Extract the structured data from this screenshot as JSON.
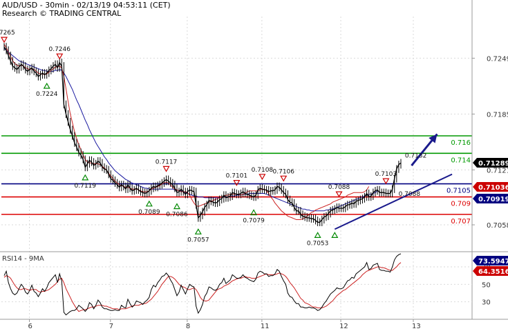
{
  "header": {
    "title": "AUD/USD - 30min - 02/13/19 04:53:11 (CET)",
    "subtitle": "Research © TRADING CENTRAL"
  },
  "chart_data": {
    "type": "line",
    "instrument": "AUD/USD",
    "price_axis": {
      "ylim": [
        0.7028,
        0.7292
      ],
      "ticks": [
        "0.7249",
        "0.7185",
        "0.7121",
        "0.7058"
      ]
    },
    "x_ticks": [
      "6",
      "7",
      "8",
      "11",
      "12",
      "13"
    ],
    "levels": [
      {
        "value": 0.716,
        "label": "0.716",
        "color": "#009900"
      },
      {
        "value": 0.714,
        "label": "0.714",
        "color": "#009900"
      },
      {
        "value": 0.7105,
        "label": "0.7105",
        "color": "#000080"
      },
      {
        "value": 0.709,
        "label": "0.709",
        "color": "#dd0000"
      },
      {
        "value": 0.707,
        "label": "0.707",
        "color": "#dd0000"
      }
    ],
    "price_tags": [
      {
        "value": 0.71289,
        "label": "0.71289",
        "bg": "#000000"
      },
      {
        "value": 0.71036,
        "label": "0.71036",
        "bg": "#cc0000"
      },
      {
        "value": 0.70919,
        "label": "0.70919",
        "bg": "#000080"
      }
    ],
    "annotations": [
      {
        "text": "0.7265",
        "value": 0.7265,
        "bar": 0,
        "marker": "high"
      },
      {
        "text": "0.7246",
        "value": 0.7246,
        "bar": 26,
        "marker": "high"
      },
      {
        "text": "0.7224",
        "value": 0.7224,
        "bar": 20,
        "marker": "low"
      },
      {
        "text": "0.7119",
        "value": 0.7119,
        "bar": 38,
        "marker": "low"
      },
      {
        "text": "0.7117",
        "value": 0.7117,
        "bar": 76,
        "marker": "high"
      },
      {
        "text": "0.7089",
        "value": 0.7089,
        "bar": 68,
        "marker": "low"
      },
      {
        "text": "0.7086",
        "value": 0.7086,
        "bar": 81,
        "marker": "low"
      },
      {
        "text": "0.7057",
        "value": 0.7057,
        "bar": 91,
        "marker": "low"
      },
      {
        "text": "0.7101",
        "value": 0.7101,
        "bar": 109,
        "marker": "high"
      },
      {
        "text": "0.7079",
        "value": 0.7079,
        "bar": 117,
        "marker": "low"
      },
      {
        "text": "0.7108",
        "value": 0.7108,
        "bar": 121,
        "marker": "high"
      },
      {
        "text": "0.7106",
        "value": 0.7106,
        "bar": 131,
        "marker": "high"
      },
      {
        "text": "0.7088",
        "value": 0.7088,
        "bar": 157,
        "marker": "high"
      },
      {
        "text": "0.7053",
        "value": 0.7053,
        "bar": 147,
        "marker": "low"
      },
      {
        "text": "0.7053",
        "value": 0.7053,
        "bar": 155,
        "marker": "low",
        "hide_text": true
      },
      {
        "text": "0.7103",
        "value": 0.7103,
        "bar": 179,
        "marker": "high"
      },
      {
        "text": "0.7088",
        "value": 0.7088,
        "bar": 190,
        "marker": "none"
      },
      {
        "text": "0.7132",
        "value": 0.7132,
        "bar": 193,
        "marker": "none"
      }
    ],
    "price_series": [
      0.7262,
      0.7258,
      0.7252,
      0.7246,
      0.724,
      0.7238,
      0.7236,
      0.7239,
      0.7242,
      0.724,
      0.7236,
      0.7234,
      0.7236,
      0.7238,
      0.7234,
      0.7232,
      0.7228,
      0.723,
      0.7232,
      0.723,
      0.7232,
      0.7235,
      0.7237,
      0.724,
      0.7242,
      0.7238,
      0.7244,
      0.724,
      0.7196,
      0.7185,
      0.7176,
      0.7167,
      0.716,
      0.7152,
      0.7147,
      0.7141,
      0.7138,
      0.7133,
      0.7124,
      0.7128,
      0.7132,
      0.713,
      0.7126,
      0.7128,
      0.7131,
      0.7129,
      0.7124,
      0.7122,
      0.7121,
      0.7116,
      0.7111,
      0.7109,
      0.7106,
      0.7104,
      0.7101,
      0.7104,
      0.7102,
      0.7099,
      0.7104,
      0.71,
      0.7097,
      0.7098,
      0.71,
      0.7098,
      0.7096,
      0.7095,
      0.7094,
      0.7095,
      0.7097,
      0.71,
      0.7102,
      0.7101,
      0.7103,
      0.7104,
      0.7106,
      0.7108,
      0.711,
      0.7108,
      0.7106,
      0.7104,
      0.71,
      0.7095,
      0.7096,
      0.7099,
      0.7096,
      0.7093,
      0.7096,
      0.7098,
      0.7097,
      0.7096,
      0.7081,
      0.7066,
      0.7069,
      0.7073,
      0.7078,
      0.7081,
      0.7086,
      0.7085,
      0.7084,
      0.7083,
      0.7084,
      0.7087,
      0.7088,
      0.7092,
      0.7089,
      0.709,
      0.7091,
      0.7095,
      0.7094,
      0.7093,
      0.7093,
      0.7094,
      0.7096,
      0.7094,
      0.7093,
      0.7092,
      0.7091,
      0.709,
      0.7092,
      0.7098,
      0.71,
      0.7099,
      0.7098,
      0.7098,
      0.7096,
      0.7097,
      0.7097,
      0.7098,
      0.7102,
      0.7101,
      0.7098,
      0.7095,
      0.7093,
      0.7087,
      0.7084,
      0.7083,
      0.7078,
      0.7074,
      0.7074,
      0.707,
      0.7068,
      0.7067,
      0.7066,
      0.7066,
      0.7065,
      0.7065,
      0.7063,
      0.7061,
      0.7061,
      0.7064,
      0.7067,
      0.7068,
      0.7071,
      0.7074,
      0.7075,
      0.7076,
      0.7078,
      0.7077,
      0.7077,
      0.7077,
      0.7079,
      0.7081,
      0.7081,
      0.7083,
      0.7082,
      0.7085,
      0.7086,
      0.7087,
      0.7088,
      0.709,
      0.7094,
      0.709,
      0.7091,
      0.7095,
      0.7097,
      0.7098,
      0.7095,
      0.7095,
      0.7095,
      0.7094,
      0.7094,
      0.7094,
      0.7099,
      0.7111,
      0.7122,
      0.7127,
      0.7129
    ],
    "ma_fast": [
      0.7265,
      0.7261,
      0.7256,
      0.7251,
      0.7246,
      0.7243,
      0.7241,
      0.724,
      0.7241,
      0.724,
      0.7238,
      0.7237,
      0.7236,
      0.7237,
      0.7236,
      0.7234,
      0.7232,
      0.7231,
      0.7231,
      0.723,
      0.7231,
      0.7233,
      0.7235,
      0.7237,
      0.7239,
      0.7239,
      0.724,
      0.7238,
      0.7228,
      0.7214,
      0.7199,
      0.7185,
      0.7175,
      0.7165,
      0.7157,
      0.715,
      0.7144,
      0.7138,
      0.7133,
      0.713,
      0.7129,
      0.7129,
      0.7128,
      0.7128,
      0.7128,
      0.7127,
      0.7125,
      0.7123,
      0.7121,
      0.7117,
      0.7114,
      0.7111,
      0.7108,
      0.7106,
      0.7104,
      0.7103,
      0.7102,
      0.7101,
      0.7101,
      0.71,
      0.7099,
      0.7099,
      0.7099,
      0.7098,
      0.7097,
      0.7096,
      0.7096,
      0.7096,
      0.7097,
      0.7099,
      0.71,
      0.7101,
      0.7102,
      0.7103,
      0.7105,
      0.7106,
      0.7107,
      0.7106,
      0.7104,
      0.7101,
      0.7099,
      0.7098,
      0.7097,
      0.7096,
      0.7096,
      0.7096,
      0.7095,
      0.7092,
      0.7087,
      0.7083,
      0.708,
      0.7079,
      0.708,
      0.7081,
      0.7082,
      0.7083,
      0.7084,
      0.7085,
      0.7086,
      0.7087,
      0.7088,
      0.7089,
      0.709,
      0.7091,
      0.7092,
      0.7092,
      0.7093,
      0.7093,
      0.7093,
      0.7093,
      0.7093,
      0.7092,
      0.7093,
      0.7094,
      0.7096,
      0.7097,
      0.7097,
      0.7097,
      0.7097,
      0.7097,
      0.7098,
      0.7099,
      0.7099,
      0.7097,
      0.7094,
      0.709,
      0.7087,
      0.7083,
      0.708,
      0.7077,
      0.7074,
      0.7072,
      0.707,
      0.7068,
      0.7067,
      0.7066,
      0.7065,
      0.7064,
      0.7064,
      0.7064,
      0.7065,
      0.7066,
      0.7068,
      0.707,
      0.7072,
      0.7073,
      0.7075,
      0.7076,
      0.7077,
      0.7078,
      0.7079,
      0.708,
      0.7081,
      0.7082,
      0.7084,
      0.7085,
      0.7086,
      0.7087,
      0.7088,
      0.7089,
      0.709,
      0.7092,
      0.7093,
      0.7094,
      0.7095,
      0.7095,
      0.7095,
      0.7095,
      0.7095,
      0.7096,
      0.7098,
      0.7102
    ],
    "ma_slow": [
      0.726,
      0.7258,
      0.7256,
      0.7254,
      0.7252,
      0.725,
      0.7248,
      0.7246,
      0.7245,
      0.7244,
      0.7243,
      0.7242,
      0.7241,
      0.724,
      0.7239,
      0.7238,
      0.7237,
      0.7236,
      0.7235,
      0.7235,
      0.7234,
      0.7234,
      0.7234,
      0.7234,
      0.7235,
      0.7235,
      0.7236,
      0.7235,
      0.7232,
      0.7228,
      0.7223,
      0.7218,
      0.7213,
      0.7207,
      0.7201,
      0.7196,
      0.719,
      0.7184,
      0.7178,
      0.7173,
      0.7167,
      0.7162,
      0.7157,
      0.7152,
      0.7148,
      0.7144,
      0.714,
      0.7136,
      0.7133,
      0.7129,
      0.7126,
      0.7123,
      0.712,
      0.7118,
      0.7116,
      0.7114,
      0.7112,
      0.711,
      0.7109,
      0.7107,
      0.7106,
      0.7105,
      0.7104,
      0.7103,
      0.7102,
      0.7101,
      0.71,
      0.71,
      0.7099,
      0.7099,
      0.7099,
      0.7099,
      0.7099,
      0.7099,
      0.7099,
      0.7099,
      0.7099,
      0.7099,
      0.7099,
      0.7099,
      0.7098,
      0.7098,
      0.7097,
      0.7097,
      0.7096,
      0.7095,
      0.7094,
      0.7093,
      0.7092,
      0.7091,
      0.7091,
      0.709,
      0.709,
      0.709,
      0.7089,
      0.7089,
      0.7089,
      0.7089,
      0.7089,
      0.7089,
      0.7089,
      0.7089,
      0.709,
      0.709,
      0.709,
      0.709,
      0.7091,
      0.7091,
      0.7091,
      0.7092,
      0.7092,
      0.7092,
      0.7093,
      0.7093,
      0.7093,
      0.7094,
      0.7094,
      0.7094,
      0.7094,
      0.7094,
      0.7094,
      0.7094,
      0.7094,
      0.7093,
      0.7092,
      0.7091,
      0.709,
      0.7089,
      0.7088,
      0.7087,
      0.7086,
      0.7085,
      0.7084,
      0.7083,
      0.7082,
      0.7081,
      0.708,
      0.7079,
      0.7078,
      0.7077,
      0.7076,
      0.7076,
      0.7075,
      0.7075,
      0.7074,
      0.7074,
      0.7074,
      0.7074,
      0.7074,
      0.7074,
      0.7074,
      0.7075,
      0.7075,
      0.7076,
      0.7076,
      0.7077,
      0.7078,
      0.7079,
      0.708,
      0.7081,
      0.7082,
      0.7083,
      0.7084,
      0.7085,
      0.7086,
      0.7087,
      0.7088,
      0.7089,
      0.709,
      0.7091,
      0.7092,
      0.7093,
      0.7093,
      0.7094,
      0.7095,
      0.7097
    ],
    "trendline": {
      "from": {
        "bar": 155,
        "value": 0.7053
      },
      "to": {
        "bar": 210,
        "value": 0.7116
      }
    },
    "arrow": {
      "from": {
        "bar": 191,
        "value": 0.7126
      },
      "to": {
        "bar": 203,
        "value": 0.7162
      }
    },
    "rsi_panel": {
      "title": "RSI14 - 9MA",
      "ylim": [
        10,
        85
      ],
      "ticks": [
        "70",
        "50",
        "30"
      ],
      "tags": [
        {
          "value": 73.5947,
          "label": "73.5947",
          "bg": "#000080"
        },
        {
          "value": 64.3516,
          "label": "64.3516",
          "bg": "#cc0000"
        }
      ],
      "rsi": [
        60,
        65,
        52,
        45,
        40,
        38,
        40,
        45,
        50,
        47,
        41,
        39,
        43,
        49,
        42,
        40,
        36,
        40,
        45,
        42,
        46,
        52,
        55,
        58,
        61,
        52,
        62,
        54,
        18,
        15,
        17,
        19,
        20,
        20,
        22,
        26,
        24,
        22,
        19,
        22,
        29,
        27,
        22,
        26,
        32,
        29,
        24,
        22,
        22,
        21,
        20,
        20,
        21,
        20,
        20,
        26,
        24,
        23,
        33,
        28,
        24,
        26,
        31,
        30,
        29,
        27,
        30,
        32,
        35,
        44,
        49,
        47,
        52,
        55,
        59,
        60,
        63,
        60,
        55,
        51,
        44,
        37,
        41,
        49,
        44,
        39,
        45,
        50,
        48,
        47,
        25,
        17,
        21,
        27,
        36,
        40,
        47,
        46,
        44,
        43,
        45,
        50,
        52,
        57,
        51,
        53,
        55,
        61,
        59,
        57,
        57,
        58,
        61,
        58,
        57,
        55,
        54,
        53,
        56,
        63,
        65,
        64,
        62,
        62,
        59,
        60,
        60,
        62,
        67,
        65,
        59,
        54,
        50,
        40,
        36,
        35,
        31,
        28,
        28,
        24,
        24,
        23,
        23,
        24,
        23,
        23,
        22,
        20,
        21,
        24,
        28,
        31,
        35,
        39,
        41,
        43,
        46,
        45,
        45,
        46,
        50,
        54,
        55,
        58,
        57,
        62,
        64,
        66,
        68,
        70,
        75,
        67,
        68,
        72,
        73,
        74,
        67,
        66,
        66,
        65,
        65,
        64,
        70,
        78,
        82,
        84,
        85
      ],
      "rsi_ma": [
        58,
        60,
        59,
        57,
        53,
        49,
        46,
        44,
        44,
        45,
        45,
        44,
        43,
        44,
        44,
        44,
        42,
        41,
        42,
        42,
        43,
        44,
        46,
        48,
        50,
        53,
        56,
        57,
        52,
        45,
        40,
        35,
        30,
        26,
        22,
        19,
        20,
        21,
        21,
        22,
        23,
        24,
        24,
        25,
        26,
        26,
        26,
        25,
        25,
        24,
        23,
        22,
        22,
        22,
        21,
        22,
        22,
        22,
        23,
        24,
        25,
        26,
        26,
        26,
        27,
        28,
        28,
        29,
        31,
        33,
        36,
        39,
        42,
        46,
        50,
        53,
        56,
        59,
        59,
        58,
        56,
        53,
        50,
        48,
        47,
        46,
        44,
        44,
        45,
        46,
        44,
        40,
        35,
        32,
        31,
        31,
        32,
        35,
        38,
        41,
        44,
        45,
        46,
        48,
        49,
        50,
        52,
        54,
        55,
        56,
        57,
        57,
        58,
        59,
        58,
        58,
        57,
        57,
        57,
        58,
        59,
        60,
        61,
        62,
        61,
        61,
        61,
        61,
        62,
        63,
        62,
        61,
        59,
        56,
        52,
        49,
        46,
        42,
        38,
        34,
        32,
        29,
        28,
        27,
        25,
        24,
        24,
        23,
        23,
        23,
        24,
        25,
        27,
        29,
        31,
        34,
        37,
        39,
        41,
        43,
        44,
        46,
        48,
        50,
        52,
        54,
        56,
        58,
        61,
        63,
        65,
        66,
        67,
        68,
        69,
        70,
        70,
        69,
        69,
        68,
        67,
        66,
        66,
        68,
        70,
        73,
        75
      ]
    }
  }
}
